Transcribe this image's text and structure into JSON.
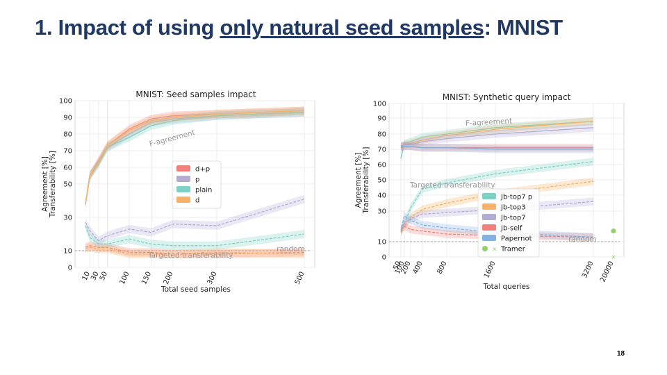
{
  "slide": {
    "title_prefix": "1. Impact of using ",
    "title_underlined": "only natural seed samples",
    "title_suffix": ": MNIST",
    "page_number": "18"
  },
  "chart_data": [
    {
      "type": "line",
      "title": "MNIST: Seed samples impact",
      "xlabel": "Total seed samples",
      "ylabel": "Agreement [%]\nTransferability [%]",
      "x_ticks": [
        10,
        30,
        50,
        100,
        150,
        200,
        300,
        500
      ],
      "y_ticks": [
        0,
        10,
        30,
        50,
        60,
        70,
        80,
        90,
        100
      ],
      "xlim": [
        0,
        510
      ],
      "ylim": [
        0,
        100
      ],
      "grid": true,
      "legend_position": "center",
      "annotations": [
        "F-agreement",
        "Targeted transferability",
        "random"
      ],
      "random_baseline": 10,
      "series": [
        {
          "name": "d+p",
          "color": "#f0817b",
          "agreement": [
            [
              0,
              38
            ],
            [
              10,
              55
            ],
            [
              30,
              64
            ],
            [
              50,
              73
            ],
            [
              100,
              83
            ],
            [
              150,
              89
            ],
            [
              200,
              91
            ],
            [
              300,
              92
            ],
            [
              500,
              94
            ]
          ],
          "transferability": [
            [
              0,
              12
            ],
            [
              10,
              13
            ],
            [
              30,
              12
            ],
            [
              50,
              12
            ],
            [
              100,
              9
            ],
            [
              150,
              9
            ],
            [
              200,
              8
            ],
            [
              300,
              8
            ],
            [
              500,
              9
            ]
          ]
        },
        {
          "name": "p",
          "color": "#b3add6",
          "agreement": [
            [
              0,
              38
            ],
            [
              10,
              55
            ],
            [
              30,
              63
            ],
            [
              50,
              72
            ],
            [
              100,
              80
            ],
            [
              150,
              87
            ],
            [
              200,
              89
            ],
            [
              300,
              91
            ],
            [
              500,
              93
            ]
          ],
          "transferability": [
            [
              0,
              27
            ],
            [
              10,
              22
            ],
            [
              30,
              16
            ],
            [
              50,
              19
            ],
            [
              100,
              23
            ],
            [
              150,
              21
            ],
            [
              200,
              26
            ],
            [
              300,
              25
            ],
            [
              500,
              41
            ]
          ]
        },
        {
          "name": "plain",
          "color": "#7fd1c6",
          "agreement": [
            [
              0,
              38
            ],
            [
              10,
              55
            ],
            [
              30,
              62
            ],
            [
              50,
              72
            ],
            [
              100,
              78
            ],
            [
              150,
              85
            ],
            [
              200,
              88
            ],
            [
              300,
              91
            ],
            [
              500,
              93
            ]
          ],
          "transferability": [
            [
              0,
              25
            ],
            [
              10,
              18
            ],
            [
              30,
              14
            ],
            [
              50,
              14
            ],
            [
              100,
              17
            ],
            [
              150,
              14
            ],
            [
              200,
              13
            ],
            [
              300,
              13
            ],
            [
              500,
              20
            ]
          ]
        },
        {
          "name": "d",
          "color": "#f7b267",
          "agreement": [
            [
              0,
              38
            ],
            [
              10,
              55
            ],
            [
              30,
              63
            ],
            [
              50,
              73
            ],
            [
              100,
              82
            ],
            [
              150,
              88
            ],
            [
              200,
              90
            ],
            [
              300,
              92
            ],
            [
              500,
              94
            ]
          ],
          "transferability": [
            [
              0,
              11
            ],
            [
              10,
              12
            ],
            [
              30,
              11
            ],
            [
              50,
              11
            ],
            [
              100,
              8
            ],
            [
              150,
              8
            ],
            [
              200,
              8
            ],
            [
              300,
              9
            ],
            [
              500,
              8
            ]
          ]
        }
      ]
    },
    {
      "type": "line",
      "title": "MNIST: Synthetic query impact",
      "xlabel": "Total queries",
      "ylabel": "Agreement [%]\nTransferability [%]",
      "x_ticks": [
        50,
        100,
        200,
        400,
        800,
        1600,
        3200,
        20000
      ],
      "y_ticks": [
        0,
        10,
        30,
        40,
        50,
        60,
        70,
        80,
        90,
        100
      ],
      "ylim": [
        0,
        100
      ],
      "grid": true,
      "legend_position": "center",
      "annotations": [
        "F-agreement",
        "Targeted transferability",
        "random"
      ],
      "random_baseline": 10,
      "series": [
        {
          "name": "Jb-top7 p",
          "color": "#7fd1c6",
          "agreement": [
            [
              50,
              64
            ],
            [
              100,
              74
            ],
            [
              200,
              75
            ],
            [
              400,
              78
            ],
            [
              800,
              80
            ],
            [
              1600,
              84
            ],
            [
              3200,
              88
            ]
          ],
          "transferability": [
            [
              50,
              17
            ],
            [
              100,
              22
            ],
            [
              200,
              32
            ],
            [
              400,
              44
            ],
            [
              800,
              48
            ],
            [
              1600,
              54
            ],
            [
              3200,
              62
            ]
          ]
        },
        {
          "name": "Jb-top3",
          "color": "#f7b267",
          "agreement": [
            [
              50,
              72
            ],
            [
              100,
              73
            ],
            [
              200,
              74
            ],
            [
              400,
              76
            ],
            [
              800,
              79
            ],
            [
              1600,
              83
            ],
            [
              3200,
              88
            ]
          ],
          "transferability": [
            [
              50,
              16
            ],
            [
              100,
              20
            ],
            [
              200,
              26
            ],
            [
              400,
              31
            ],
            [
              800,
              35
            ],
            [
              1600,
              41
            ],
            [
              3200,
              49
            ]
          ]
        },
        {
          "name": "Jb-top7",
          "color": "#b3add6",
          "agreement": [
            [
              50,
              72
            ],
            [
              100,
              73
            ],
            [
              200,
              73
            ],
            [
              400,
              75
            ],
            [
              800,
              77
            ],
            [
              1600,
              80
            ],
            [
              3200,
              84
            ]
          ],
          "transferability": [
            [
              50,
              18
            ],
            [
              100,
              22
            ],
            [
              200,
              25
            ],
            [
              400,
              28
            ],
            [
              800,
              29
            ],
            [
              1600,
              31
            ],
            [
              3200,
              36
            ]
          ]
        },
        {
          "name": "Jb-self",
          "color": "#f0817b",
          "agreement": [
            [
              50,
              71
            ],
            [
              100,
              72
            ],
            [
              200,
              72
            ],
            [
              400,
              71
            ],
            [
              800,
              71
            ],
            [
              1600,
              71
            ],
            [
              3200,
              71
            ]
          ],
          "transferability": [
            [
              50,
              18
            ],
            [
              100,
              20
            ],
            [
              200,
              18
            ],
            [
              400,
              17
            ],
            [
              800,
              15
            ],
            [
              1600,
              14
            ],
            [
              3200,
              13
            ]
          ]
        },
        {
          "name": "Papernot",
          "color": "#85b1de",
          "agreement": [
            [
              50,
              72
            ],
            [
              100,
              72
            ],
            [
              200,
              72
            ],
            [
              400,
              71
            ],
            [
              800,
              71
            ],
            [
              1600,
              70
            ],
            [
              3200,
              70
            ]
          ],
          "transferability": [
            [
              50,
              17
            ],
            [
              100,
              27
            ],
            [
              200,
              24
            ],
            [
              400,
              21
            ],
            [
              800,
              19
            ],
            [
              1600,
              16
            ],
            [
              3200,
              13
            ]
          ]
        },
        {
          "name": "Tramer",
          "color": "#8fd46a",
          "points": [
            [
              20000,
              17
            ],
            [
              20000,
              0
            ]
          ]
        }
      ]
    }
  ]
}
